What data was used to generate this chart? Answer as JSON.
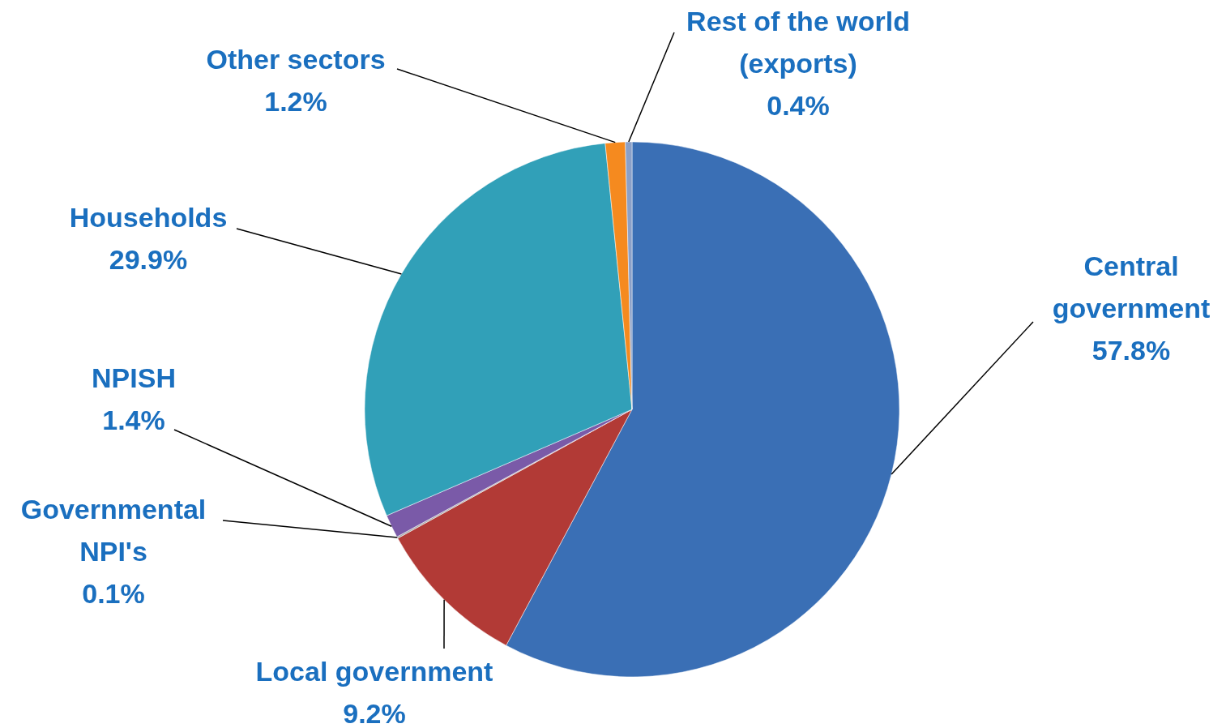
{
  "chart_data": {
    "type": "pie",
    "categories": [
      "Central government",
      "Local government",
      "Governmental NPI's",
      "NPISH",
      "Households",
      "Other sectors",
      "Rest of the world (exports)"
    ],
    "values": [
      57.8,
      9.2,
      0.1,
      1.4,
      29.9,
      1.2,
      0.4
    ],
    "colors": [
      "#3a6fb5",
      "#b23a36",
      "#a9a9a9",
      "#7a5aa8",
      "#31a0b8",
      "#f58a1f",
      "#8aa0c8"
    ],
    "value_labels": [
      "57.8%",
      "9.2%",
      "0.1%",
      "1.4%",
      "29.9%",
      "1.2%",
      "0.4%"
    ]
  }
}
